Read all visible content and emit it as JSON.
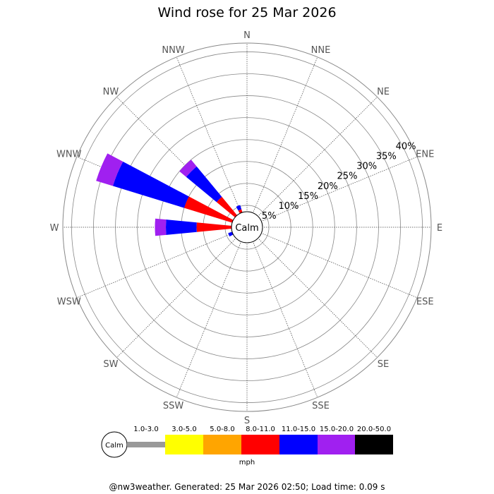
{
  "colors": {
    "bin_colors": [
      "#999999",
      "#ffff00",
      "#ffa500",
      "#ff0000",
      "#0000ff",
      "#a020f0",
      "#000000"
    ],
    "grid": "#888888",
    "spoke": "#444444"
  },
  "chart_data": {
    "type": "wind-rose",
    "title": "Wind rose for 25 Mar 2026",
    "directions": [
      "N",
      "NNE",
      "NE",
      "ENE",
      "E",
      "ESE",
      "SE",
      "SSE",
      "S",
      "SSW",
      "SW",
      "WSW",
      "W",
      "WNW",
      "NW",
      "NNW"
    ],
    "radial_ticks": [
      "5%",
      "10%",
      "15%",
      "20%",
      "25%",
      "30%",
      "35%",
      "40%"
    ],
    "radial_tick_values": [
      5,
      10,
      15,
      20,
      25,
      30,
      35,
      40
    ],
    "rmax": 42,
    "calm_label": "Calm",
    "units": "mph",
    "speed_bins": [
      "1.0-3.0",
      "3.0-5.0",
      "5.0-8.0",
      "8.0-11.0",
      "11.0-15.0",
      "15.0-20.0",
      "20.0-50.0"
    ],
    "series": [
      {
        "direction": "NNW",
        "values": [
          0,
          0,
          1.5,
          2.8,
          1.0,
          0,
          0
        ]
      },
      {
        "direction": "N",
        "values": [
          0,
          0,
          0,
          0.3,
          0,
          0,
          0
        ]
      },
      {
        "direction": "NNE",
        "values": [
          0,
          0,
          0,
          0.4,
          0.3,
          0,
          0
        ]
      },
      {
        "direction": "ENE",
        "values": [
          0,
          0,
          0,
          0,
          3.2,
          0,
          0
        ]
      },
      {
        "direction": "E",
        "values": [
          0,
          0,
          0,
          0.3,
          0,
          0,
          0
        ]
      },
      {
        "direction": "SSW",
        "values": [
          0,
          0,
          0.3,
          1.2,
          0,
          0.4,
          0
        ]
      },
      {
        "direction": "SW",
        "values": [
          0,
          0,
          0.3,
          0.5,
          0,
          0,
          0
        ]
      },
      {
        "direction": "WSW",
        "values": [
          0,
          0,
          1.5,
          0.8,
          2.2,
          0,
          0
        ]
      },
      {
        "direction": "W",
        "values": [
          0,
          0,
          0.5,
          11.0,
          7.0,
          2.5,
          0
        ]
      },
      {
        "direction": "WNW",
        "values": [
          0,
          0,
          3.5,
          11.5,
          17.0,
          4.0,
          0
        ]
      },
      {
        "direction": "NW",
        "values": [
          0,
          0,
          2.0,
          7.0,
          9.0,
          2.0,
          0
        ]
      }
    ],
    "legend_placement": "bottom"
  },
  "footer": "@nw3weather. Generated: 25 Mar 2026 02:50; Load time: 0.09 s"
}
